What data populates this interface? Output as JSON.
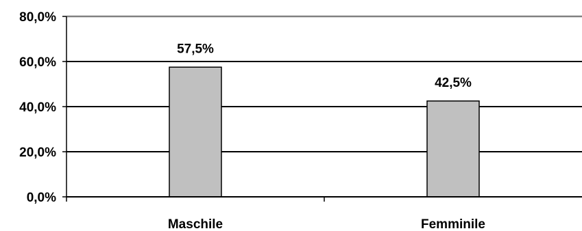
{
  "chart_data": {
    "type": "bar",
    "categories": [
      "Maschile",
      "Femminile"
    ],
    "values": [
      57.5,
      42.5
    ],
    "data_labels": [
      "57,5%",
      "42,5%"
    ],
    "y_ticks": [
      {
        "value": 0,
        "label": "0,0%"
      },
      {
        "value": 20,
        "label": "20,0%"
      },
      {
        "value": 40,
        "label": "40,0%"
      },
      {
        "value": 60,
        "label": "60,0%"
      },
      {
        "value": 80,
        "label": "80,0%"
      }
    ],
    "ylim": [
      0,
      80
    ],
    "grid": true,
    "legend": "none",
    "colors": {
      "bar_fill": "#c0c0c0",
      "bar_stroke": "#000000",
      "gridline": "#000000",
      "top_border": "#808080",
      "axis": "#000000"
    }
  }
}
